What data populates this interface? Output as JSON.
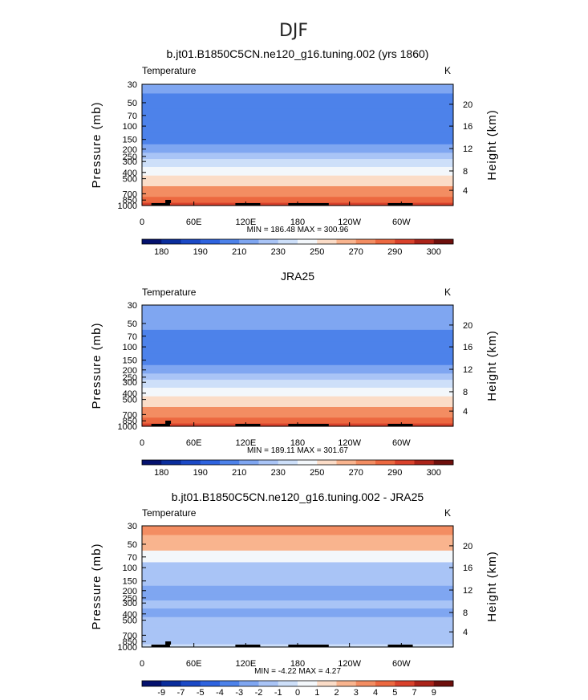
{
  "figure": {
    "title": "DJF",
    "variable_label": "Temperature",
    "units_label": "K"
  },
  "chart_data": [
    {
      "type": "heatmap",
      "title": "b.jt01.B1850C5CN.ne120_g16.tuning.002 (yrs 1860)",
      "subtitle": "Temperature",
      "units": "K",
      "xlabel": "",
      "ylabel": "Pressure (mb)",
      "y2label": "Height (km)",
      "x_ticks": [
        "0",
        "60E",
        "120E",
        "180",
        "120W",
        "60W"
      ],
      "y_ticks": [
        "30",
        "50",
        "70",
        "100",
        "150",
        "200",
        "250",
        "300",
        "400",
        "500",
        "700",
        "850",
        "1000"
      ],
      "y2_ticks": [
        "20",
        "16",
        "12",
        "8",
        "4"
      ],
      "stats": "MIN = 186.48   MAX = 300.96",
      "levels": [
        175,
        180,
        185,
        190,
        200,
        210,
        220,
        230,
        240,
        250,
        260,
        270,
        280,
        290,
        295,
        300
      ],
      "colorbar_labels": [
        "180",
        "190",
        "210",
        "230",
        "250",
        "270",
        "290",
        "300"
      ],
      "colors": [
        "#04116e",
        "#0a2d9c",
        "#1b49c6",
        "#2e63df",
        "#4d82ea",
        "#7fa6f1",
        "#a9c4f6",
        "#cddff9",
        "#f3f7fb",
        "#fbdcc7",
        "#f9b48e",
        "#f38d62",
        "#ec6840",
        "#d9412b",
        "#ab2319",
        "#6e0f0c"
      ],
      "profile": [
        {
          "p": "30",
          "t": 218
        },
        {
          "p": "50",
          "t": 209
        },
        {
          "p": "70",
          "t": 204
        },
        {
          "p": "100",
          "t": 201
        },
        {
          "p": "150",
          "t": 207
        },
        {
          "p": "200",
          "t": 216
        },
        {
          "p": "250",
          "t": 224
        },
        {
          "p": "300",
          "t": 233
        },
        {
          "p": "400",
          "t": 248
        },
        {
          "p": "500",
          "t": 259
        },
        {
          "p": "700",
          "t": 274
        },
        {
          "p": "850",
          "t": 283
        },
        {
          "p": "1000",
          "t": 293
        }
      ]
    },
    {
      "type": "heatmap",
      "title": "JRA25",
      "subtitle": "Temperature",
      "units": "K",
      "xlabel": "",
      "ylabel": "Pressure (mb)",
      "y2label": "Height (km)",
      "x_ticks": [
        "0",
        "60E",
        "120E",
        "180",
        "120W",
        "60W"
      ],
      "y_ticks": [
        "30",
        "50",
        "70",
        "100",
        "150",
        "200",
        "250",
        "300",
        "400",
        "500",
        "700",
        "850",
        "1000"
      ],
      "y2_ticks": [
        "20",
        "16",
        "12",
        "8",
        "4"
      ],
      "stats": "MIN = 189.11   MAX = 301.67",
      "levels": [
        175,
        180,
        185,
        190,
        200,
        210,
        220,
        230,
        240,
        250,
        260,
        270,
        280,
        290,
        295,
        300
      ],
      "colorbar_labels": [
        "180",
        "190",
        "210",
        "230",
        "250",
        "270",
        "290",
        "300"
      ],
      "colors": [
        "#04116e",
        "#0a2d9c",
        "#1b49c6",
        "#2e63df",
        "#4d82ea",
        "#7fa6f1",
        "#a9c4f6",
        "#cddff9",
        "#f3f7fb",
        "#fbdcc7",
        "#f9b48e",
        "#f38d62",
        "#ec6840",
        "#d9412b",
        "#ab2319",
        "#6e0f0c"
      ],
      "profile": [
        {
          "p": "30",
          "t": 216
        },
        {
          "p": "50",
          "t": 210
        },
        {
          "p": "70",
          "t": 205
        },
        {
          "p": "100",
          "t": 202
        },
        {
          "p": "150",
          "t": 208
        },
        {
          "p": "200",
          "t": 217
        },
        {
          "p": "250",
          "t": 225
        },
        {
          "p": "300",
          "t": 233
        },
        {
          "p": "400",
          "t": 247
        },
        {
          "p": "500",
          "t": 258
        },
        {
          "p": "700",
          "t": 273
        },
        {
          "p": "850",
          "t": 283
        },
        {
          "p": "1000",
          "t": 294
        }
      ]
    },
    {
      "type": "heatmap",
      "title": "b.jt01.B1850C5CN.ne120_g16.tuning.002 - JRA25",
      "subtitle": "Temperature",
      "units": "K",
      "xlabel": "",
      "ylabel": "Pressure (mb)",
      "y2label": "Height (km)",
      "x_ticks": [
        "0",
        "60E",
        "120E",
        "180",
        "120W",
        "60W"
      ],
      "y_ticks": [
        "30",
        "50",
        "70",
        "100",
        "150",
        "200",
        "250",
        "300",
        "400",
        "500",
        "700",
        "850",
        "1000"
      ],
      "y2_ticks": [
        "20",
        "16",
        "12",
        "8",
        "4"
      ],
      "stats": "MIN =  -4.22   MAX =   4.27",
      "levels": [
        -10,
        -9,
        -7,
        -5,
        -4,
        -3,
        -2,
        -1,
        0,
        1,
        2,
        3,
        4,
        5,
        7,
        9
      ],
      "colorbar_labels": [
        "-9",
        "-7",
        "-5",
        "-4",
        "-3",
        "-2",
        "-1",
        "0",
        "1",
        "2",
        "3",
        "4",
        "5",
        "7",
        "9"
      ],
      "colors": [
        "#04116e",
        "#0a2d9c",
        "#1b49c6",
        "#2e63df",
        "#4d82ea",
        "#7fa6f1",
        "#a9c4f6",
        "#cddff9",
        "#f3f7fb",
        "#fbdcc7",
        "#f9b48e",
        "#f38d62",
        "#ec6840",
        "#d9412b",
        "#ab2319",
        "#6e0f0c"
      ],
      "profile": [
        {
          "p": "30",
          "t": 3.4
        },
        {
          "p": "50",
          "t": 2.6
        },
        {
          "p": "70",
          "t": 0.6
        },
        {
          "p": "100",
          "t": -1.4
        },
        {
          "p": "150",
          "t": -1.6
        },
        {
          "p": "200",
          "t": -2.1
        },
        {
          "p": "250",
          "t": -2.8
        },
        {
          "p": "300",
          "t": -1.8
        },
        {
          "p": "400",
          "t": -2.5
        },
        {
          "p": "500",
          "t": -1.9
        },
        {
          "p": "700",
          "t": -1.1
        },
        {
          "p": "850",
          "t": -1.6
        },
        {
          "p": "1000",
          "t": -0.6
        }
      ]
    }
  ]
}
